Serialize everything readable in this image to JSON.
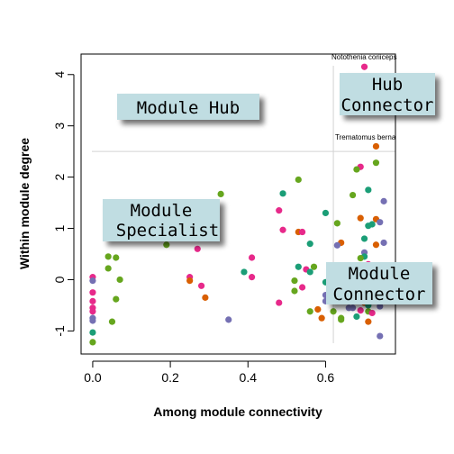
{
  "chart_data": {
    "type": "scatter",
    "xlabel": "Among module connectivity",
    "ylabel": "Within module degree",
    "xlim": [
      -0.03,
      0.78
    ],
    "ylim": [
      -1.45,
      4.4
    ],
    "x_ticks": [
      0.0,
      0.2,
      0.4,
      0.6
    ],
    "x_tick_labels": [
      "0.0",
      "0.2",
      "0.4",
      "0.6"
    ],
    "y_ticks": [
      -1,
      0,
      1,
      2,
      3,
      4
    ],
    "y_tick_labels": [
      "-1",
      "0",
      "1",
      "2",
      "3",
      "4"
    ],
    "grid": false,
    "thresholds": {
      "x": 0.62,
      "y": 2.5
    },
    "region_labels": [
      {
        "id": "module-hub",
        "lines": [
          "Module Hub"
        ]
      },
      {
        "id": "hub-connector",
        "lines": [
          "Hub",
          "Connector"
        ]
      },
      {
        "id": "module-specialist",
        "lines": [
          "Module",
          "Specialist"
        ]
      },
      {
        "id": "module-connector",
        "lines": [
          "Module",
          "Connector"
        ]
      }
    ],
    "annotations": [
      {
        "text": "Notothenia coriiceps",
        "x": 0.63,
        "y": 4.42
      },
      {
        "text": "Trematomus berna",
        "x": 0.628,
        "y": 2.66
      }
    ],
    "colors": {
      "teal": "#1b9e77",
      "orange": "#d95f02",
      "purple": "#7570b3",
      "pink": "#e7298a",
      "green": "#66a61e",
      "gold": "#e6ab02",
      "threshold_line": "#d3d3d3",
      "box_fill": "#c0dde2"
    },
    "points": [
      {
        "x": 0.7,
        "y": 4.15,
        "c": "pink"
      },
      {
        "x": 0.73,
        "y": 2.6,
        "c": "orange"
      },
      {
        "x": 0.73,
        "y": 2.28,
        "c": "green"
      },
      {
        "x": 0.69,
        "y": 2.2,
        "c": "pink"
      },
      {
        "x": 0.68,
        "y": 2.15,
        "c": "green"
      },
      {
        "x": 0.71,
        "y": 1.75,
        "c": "teal"
      },
      {
        "x": 0.67,
        "y": 1.65,
        "c": "green"
      },
      {
        "x": 0.75,
        "y": 1.53,
        "c": "purple"
      },
      {
        "x": 0.69,
        "y": 1.2,
        "c": "orange"
      },
      {
        "x": 0.73,
        "y": 1.18,
        "c": "orange"
      },
      {
        "x": 0.74,
        "y": 1.12,
        "c": "purple"
      },
      {
        "x": 0.72,
        "y": 1.08,
        "c": "teal"
      },
      {
        "x": 0.71,
        "y": 1.05,
        "c": "teal"
      },
      {
        "x": 0.7,
        "y": 0.8,
        "c": "teal"
      },
      {
        "x": 0.75,
        "y": 0.72,
        "c": "purple"
      },
      {
        "x": 0.73,
        "y": 0.68,
        "c": "orange"
      },
      {
        "x": 0.7,
        "y": 0.53,
        "c": "purple"
      },
      {
        "x": 0.7,
        "y": 0.45,
        "c": "teal"
      },
      {
        "x": 0.69,
        "y": 0.42,
        "c": "green"
      },
      {
        "x": 0.71,
        "y": 0.3,
        "c": "pink"
      },
      {
        "x": 0.7,
        "y": 0.15,
        "c": "teal"
      },
      {
        "x": 0.73,
        "y": 0.05,
        "c": "teal"
      },
      {
        "x": 0.68,
        "y": -0.05,
        "c": "pink"
      },
      {
        "x": 0.72,
        "y": -0.1,
        "c": "purple"
      },
      {
        "x": 0.7,
        "y": -0.2,
        "c": "teal"
      },
      {
        "x": 0.68,
        "y": -0.3,
        "c": "orange"
      },
      {
        "x": 0.66,
        "y": -0.4,
        "c": "pink"
      },
      {
        "x": 0.7,
        "y": -0.45,
        "c": "orange"
      },
      {
        "x": 0.71,
        "y": -0.5,
        "c": "teal"
      },
      {
        "x": 0.74,
        "y": -0.52,
        "c": "purple"
      },
      {
        "x": 0.66,
        "y": -0.55,
        "c": "purple"
      },
      {
        "x": 0.67,
        "y": -0.55,
        "c": "purple"
      },
      {
        "x": 0.69,
        "y": -0.6,
        "c": "pink"
      },
      {
        "x": 0.71,
        "y": -0.62,
        "c": "green"
      },
      {
        "x": 0.72,
        "y": -0.65,
        "c": "pink"
      },
      {
        "x": 0.68,
        "y": -0.72,
        "c": "teal"
      },
      {
        "x": 0.64,
        "y": -0.75,
        "c": "green"
      },
      {
        "x": 0.64,
        "y": -0.78,
        "c": "green"
      },
      {
        "x": 0.71,
        "y": -0.82,
        "c": "orange"
      },
      {
        "x": 0.74,
        "y": -1.1,
        "c": "purple"
      },
      {
        "x": 0.6,
        "y": 1.3,
        "c": "teal"
      },
      {
        "x": 0.63,
        "y": 1.1,
        "c": "green"
      },
      {
        "x": 0.64,
        "y": 0.72,
        "c": "orange"
      },
      {
        "x": 0.63,
        "y": 0.67,
        "c": "purple"
      },
      {
        "x": 0.6,
        "y": -0.05,
        "c": "teal"
      },
      {
        "x": 0.6,
        "y": -0.3,
        "c": "purple"
      },
      {
        "x": 0.6,
        "y": -0.42,
        "c": "purple"
      },
      {
        "x": 0.62,
        "y": -0.62,
        "c": "green"
      },
      {
        "x": 0.59,
        "y": -0.75,
        "c": "orange"
      },
      {
        "x": 0.53,
        "y": 1.95,
        "c": "green"
      },
      {
        "x": 0.49,
        "y": 1.68,
        "c": "teal"
      },
      {
        "x": 0.48,
        "y": 1.35,
        "c": "pink"
      },
      {
        "x": 0.49,
        "y": 0.97,
        "c": "pink"
      },
      {
        "x": 0.53,
        "y": 0.93,
        "c": "orange"
      },
      {
        "x": 0.54,
        "y": 0.93,
        "c": "pink"
      },
      {
        "x": 0.56,
        "y": 0.7,
        "c": "teal"
      },
      {
        "x": 0.53,
        "y": 0.25,
        "c": "teal"
      },
      {
        "x": 0.55,
        "y": 0.2,
        "c": "pink"
      },
      {
        "x": 0.57,
        "y": 0.25,
        "c": "green"
      },
      {
        "x": 0.56,
        "y": 0.15,
        "c": "teal"
      },
      {
        "x": 0.52,
        "y": -0.02,
        "c": "green"
      },
      {
        "x": 0.54,
        "y": -0.15,
        "c": "pink"
      },
      {
        "x": 0.52,
        "y": -0.22,
        "c": "green"
      },
      {
        "x": 0.48,
        "y": -0.45,
        "c": "pink"
      },
      {
        "x": 0.56,
        "y": -0.62,
        "c": "green"
      },
      {
        "x": 0.58,
        "y": -0.58,
        "c": "orange"
      },
      {
        "x": 0.33,
        "y": 1.67,
        "c": "green"
      },
      {
        "x": 0.41,
        "y": 0.43,
        "c": "pink"
      },
      {
        "x": 0.39,
        "y": 0.15,
        "c": "teal"
      },
      {
        "x": 0.41,
        "y": 0.05,
        "c": "pink"
      },
      {
        "x": 0.35,
        "y": -0.78,
        "c": "purple"
      },
      {
        "x": 0.19,
        "y": 0.68,
        "c": "green"
      },
      {
        "x": 0.27,
        "y": 0.6,
        "c": "pink"
      },
      {
        "x": 0.25,
        "y": 0.05,
        "c": "pink"
      },
      {
        "x": 0.25,
        "y": -0.02,
        "c": "orange"
      },
      {
        "x": 0.28,
        "y": -0.12,
        "c": "pink"
      },
      {
        "x": 0.29,
        "y": -0.35,
        "c": "orange"
      },
      {
        "x": 0.04,
        "y": 0.45,
        "c": "green"
      },
      {
        "x": 0.06,
        "y": 0.43,
        "c": "green"
      },
      {
        "x": 0.04,
        "y": 0.22,
        "c": "green"
      },
      {
        "x": 0.07,
        "y": 0.0,
        "c": "green"
      },
      {
        "x": 0.06,
        "y": -0.38,
        "c": "green"
      },
      {
        "x": 0.05,
        "y": -0.82,
        "c": "green"
      },
      {
        "x": 0.0,
        "y": 0.05,
        "c": "pink"
      },
      {
        "x": 0.0,
        "y": -0.02,
        "c": "purple"
      },
      {
        "x": 0.0,
        "y": -0.25,
        "c": "pink"
      },
      {
        "x": 0.0,
        "y": -0.42,
        "c": "pink"
      },
      {
        "x": 0.0,
        "y": -0.55,
        "c": "pink"
      },
      {
        "x": 0.0,
        "y": -0.62,
        "c": "pink"
      },
      {
        "x": 0.0,
        "y": -0.75,
        "c": "purple"
      },
      {
        "x": 0.0,
        "y": -0.8,
        "c": "purple"
      },
      {
        "x": 0.0,
        "y": -1.03,
        "c": "teal"
      },
      {
        "x": 0.0,
        "y": -1.22,
        "c": "green"
      }
    ]
  }
}
